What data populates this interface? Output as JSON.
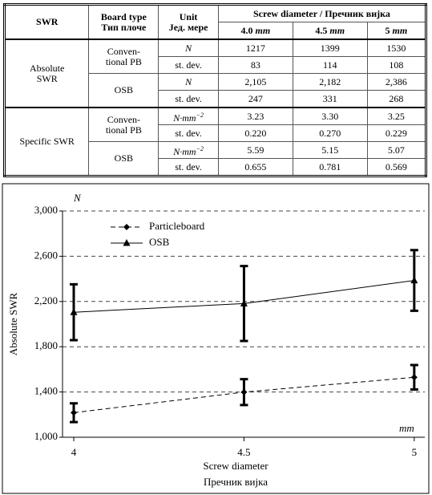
{
  "table": {
    "header": [
      [
        "SWR"
      ],
      [
        "Board type",
        "Тип плоче"
      ],
      [
        "Unit",
        "Јед. мере"
      ],
      [
        "Screw diameter / Пречник вијка"
      ]
    ],
    "diameters": [
      {
        "size": "4.0",
        "unit": "mm"
      },
      {
        "size": "4.5",
        "unit": "mm"
      },
      {
        "size": "5",
        "unit": "mm"
      }
    ],
    "groups": [
      {
        "name": [
          "Absolute",
          "SWR"
        ],
        "boards": [
          {
            "name": [
              "Conven-",
              "tional PB"
            ],
            "rows": [
              {
                "unit": "N",
                "italic": true,
                "values": [
                  "1217",
                  "1399",
                  "1530"
                ]
              },
              {
                "unit": "st. dev.",
                "values": [
                  "83",
                  "114",
                  "108"
                ]
              }
            ]
          },
          {
            "name": [
              "OSB"
            ],
            "rows": [
              {
                "unit": "N",
                "italic": true,
                "values": [
                  "2,105",
                  "2,182",
                  "2,386"
                ]
              },
              {
                "unit": "st. dev.",
                "values": [
                  "247",
                  "331",
                  "268"
                ]
              }
            ]
          }
        ]
      },
      {
        "name": [
          "Specific SWR"
        ],
        "boards": [
          {
            "name": [
              "Conven-",
              "tional PB"
            ],
            "rows": [
              {
                "unit": "N·mm",
                "exp": "−2",
                "italic": true,
                "values": [
                  "3.23",
                  "3.30",
                  "3.25"
                ]
              },
              {
                "unit": "st. dev.",
                "values": [
                  "0.220",
                  "0.270",
                  "0.229"
                ]
              }
            ]
          },
          {
            "name": [
              "OSB"
            ],
            "rows": [
              {
                "unit": "N·mm",
                "exp": "−2",
                "italic": true,
                "values": [
                  "5.59",
                  "5.15",
                  "5.07"
                ]
              },
              {
                "unit": "st. dev.",
                "values": [
                  "0.655",
                  "0.781",
                  "0.569"
                ]
              }
            ]
          }
        ]
      }
    ]
  },
  "chart_data": {
    "type": "line",
    "y_unit": "N",
    "x_unit": "mm",
    "ylabel": "Absolute SWR",
    "xlabel": [
      "Screw diameter",
      "Пречник вијка"
    ],
    "x": [
      4,
      4.5,
      5
    ],
    "xlim": [
      3.967,
      5.031
    ],
    "xticks": [
      4,
      4.5,
      5
    ],
    "ylim": [
      1000,
      3000
    ],
    "yticks": [
      {
        "value": 1000,
        "label": "1,000"
      },
      {
        "value": 1400,
        "label": "1,400"
      },
      {
        "value": 1800,
        "label": "1,800"
      },
      {
        "value": 2200,
        "label": "2,200"
      },
      {
        "value": 2600,
        "label": "2,600"
      },
      {
        "value": 3000,
        "label": "3,000"
      }
    ],
    "grid": true,
    "legend": "upper left",
    "series": [
      {
        "name": "Particleboard",
        "color": "#000000",
        "dashed": true,
        "marker": "diamond",
        "values": [
          1217,
          1399,
          1530
        ],
        "errors": [
          83,
          114,
          108
        ]
      },
      {
        "name": "OSB",
        "color": "#000000",
        "dashed": false,
        "marker": "triangle",
        "values": [
          2105,
          2182,
          2386
        ],
        "errors": [
          247,
          331,
          268
        ]
      }
    ]
  }
}
